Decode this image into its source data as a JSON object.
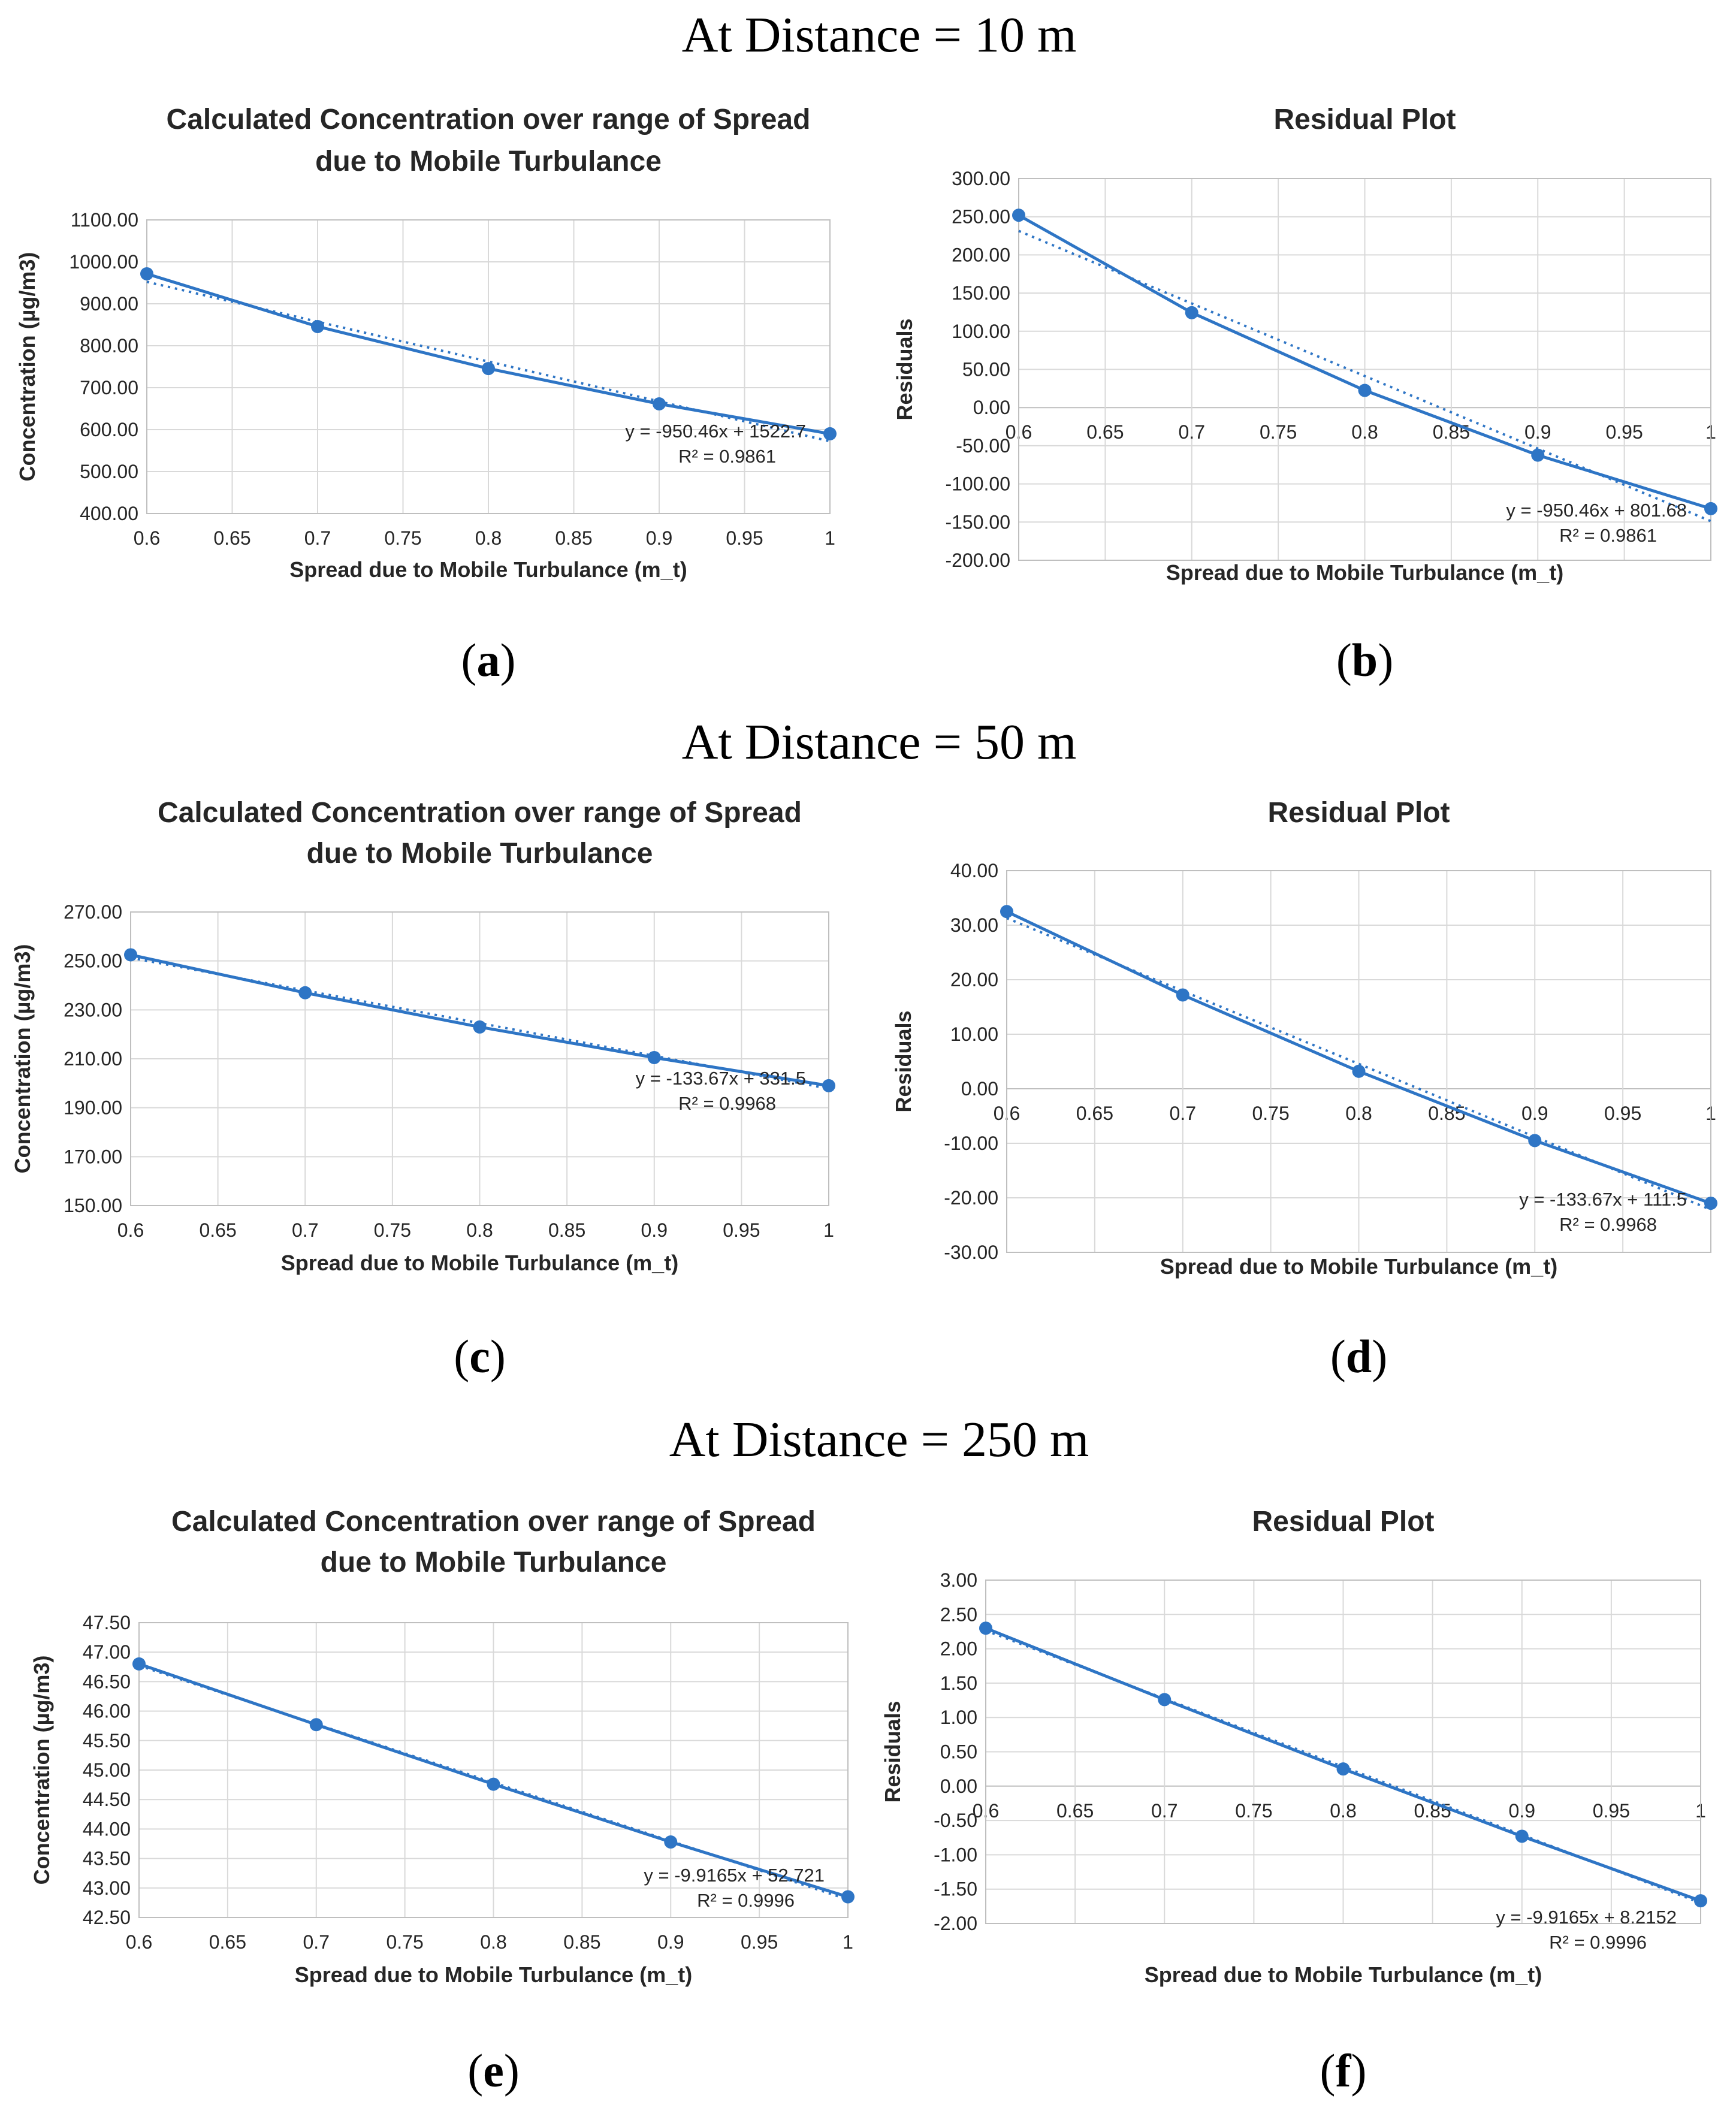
{
  "sections": [
    {
      "heading": "At Distance = 10 m"
    },
    {
      "heading": "At Distance = 50 m"
    },
    {
      "heading": "At Distance = 250 m"
    }
  ],
  "colors": {
    "series": "#2e75c5",
    "grid": "#d9d9d9",
    "text": "#262626"
  },
  "chart_data": [
    {
      "id": "a",
      "panel_label": "(a)",
      "type": "line",
      "title_lines": [
        "Calculated Concentration over range of Spread",
        "due to Mobile Turbulance"
      ],
      "xlabel": "Spread due to Mobile Turbulance (m_t)",
      "ylabel": "Concentration (µg/m3)",
      "xlim": [
        0.6,
        1.0
      ],
      "x_ticks": [
        "0.6",
        "0.65",
        "0.7",
        "0.75",
        "0.8",
        "0.85",
        "0.9",
        "0.95",
        "1"
      ],
      "ylim": [
        400,
        1100
      ],
      "y_ticks": [
        "400.00",
        "500.00",
        "600.00",
        "700.00",
        "800.00",
        "900.00",
        "1000.00",
        "1100.00"
      ],
      "x": [
        0.6,
        0.7,
        0.8,
        0.9,
        1.0
      ],
      "y": [
        971.5,
        845.8,
        745.6,
        661.4,
        590.1
      ],
      "trendline": {
        "slope": -950.46,
        "intercept": 1522.7
      },
      "equation": "y = -950.46x + 1522.7",
      "r2_label": "R² = 0.9861"
    },
    {
      "id": "b",
      "panel_label": "(b)",
      "type": "line",
      "title_lines": [
        "Residual Plot"
      ],
      "xlabel": "Spread due to Mobile Turbulance (m_t)",
      "ylabel": "Residuals",
      "xlim": [
        0.6,
        1.0
      ],
      "x_ticks": [
        "0.6",
        "0.65",
        "0.7",
        "0.75",
        "0.8",
        "0.85",
        "0.9",
        "0.95",
        "1"
      ],
      "ylim": [
        -200,
        300
      ],
      "y_ticks": [
        "-200.00",
        "-150.00",
        "-100.00",
        "-50.00",
        "0.00",
        "50.00",
        "100.00",
        "150.00",
        "200.00",
        "250.00",
        "300.00"
      ],
      "x": [
        0.6,
        0.7,
        0.8,
        0.9,
        1.0
      ],
      "y": [
        252.0,
        124.3,
        22.5,
        -62.3,
        -132.4
      ],
      "trendline": {
        "slope": -950.46,
        "intercept": 801.68
      },
      "equation": "y = -950.46x + 801.68",
      "r2_label": "R² = 0.9861"
    },
    {
      "id": "c",
      "panel_label": "(c)",
      "type": "line",
      "title_lines": [
        "Calculated Concentration over range of Spread",
        "due to Mobile Turbulance"
      ],
      "xlabel": "Spread due to Mobile Turbulance (m_t)",
      "ylabel": "Concentration (µg/m3)",
      "xlim": [
        0.6,
        1.0
      ],
      "x_ticks": [
        "0.6",
        "0.65",
        "0.7",
        "0.75",
        "0.8",
        "0.85",
        "0.9",
        "0.95",
        "1"
      ],
      "ylim": [
        150,
        270
      ],
      "y_ticks": [
        "150.00",
        "170.00",
        "190.00",
        "210.00",
        "230.00",
        "250.00",
        "270.00"
      ],
      "x": [
        0.6,
        0.7,
        0.8,
        0.9,
        1.0
      ],
      "y": [
        252.5,
        237.0,
        223.0,
        210.5,
        199.0
      ],
      "trendline": {
        "slope": -133.67,
        "intercept": 331.5
      },
      "equation": "y = -133.67x + 331.5",
      "r2_label": "R² = 0.9968"
    },
    {
      "id": "d",
      "panel_label": "(d)",
      "type": "line",
      "title_lines": [
        "Residual Plot"
      ],
      "xlabel": "Spread due to Mobile Turbulance (m_t)",
      "ylabel": "Residuals",
      "xlim": [
        0.6,
        1.0
      ],
      "x_ticks": [
        "0.6",
        "0.65",
        "0.7",
        "0.75",
        "0.8",
        "0.85",
        "0.9",
        "0.95",
        "1"
      ],
      "ylim": [
        -30,
        40
      ],
      "y_ticks": [
        "-30.00",
        "-20.00",
        "-10.00",
        "0.00",
        "10.00",
        "20.00",
        "30.00",
        "40.00"
      ],
      "x": [
        0.6,
        0.7,
        0.8,
        0.9,
        1.0
      ],
      "y": [
        32.5,
        17.2,
        3.2,
        -9.5,
        -21.0
      ],
      "trendline": {
        "slope": -133.67,
        "intercept": 111.5
      },
      "equation": "y = -133.67x + 111.5",
      "r2_label": "R² = 0.9968"
    },
    {
      "id": "e",
      "panel_label": "(e)",
      "type": "line",
      "title_lines": [
        "Calculated Concentration over range of Spread",
        "due to Mobile Turbulance"
      ],
      "xlabel": "Spread due to Mobile Turbulance (m_t)",
      "ylabel": "Concentration (µg/m3)",
      "xlim": [
        0.6,
        1.0
      ],
      "x_ticks": [
        "0.6",
        "0.65",
        "0.7",
        "0.75",
        "0.8",
        "0.85",
        "0.9",
        "0.95",
        "1"
      ],
      "ylim": [
        42.5,
        47.5
      ],
      "y_ticks": [
        "42.50",
        "43.00",
        "43.50",
        "44.00",
        "44.50",
        "45.00",
        "45.50",
        "46.00",
        "46.50",
        "47.00",
        "47.50"
      ],
      "x": [
        0.6,
        0.7,
        0.8,
        0.9,
        1.0
      ],
      "y": [
        46.8,
        45.77,
        44.76,
        43.78,
        42.85
      ],
      "trendline": {
        "slope": -9.9165,
        "intercept": 52.721
      },
      "equation": "y = -9.9165x + 52.721",
      "r2_label": "R² = 0.9996"
    },
    {
      "id": "f",
      "panel_label": "(f)",
      "type": "line",
      "title_lines": [
        "Residual Plot"
      ],
      "xlabel": "Spread due to Mobile Turbulance (m_t)",
      "ylabel": "Residuals",
      "xlim": [
        0.6,
        1.0
      ],
      "x_ticks": [
        "0.6",
        "0.65",
        "0.7",
        "0.75",
        "0.8",
        "0.85",
        "0.9",
        "0.95",
        "1"
      ],
      "ylim": [
        -2,
        3
      ],
      "y_ticks": [
        "-2.00",
        "-1.50",
        "-1.00",
        "-0.50",
        "0.00",
        "0.50",
        "1.00",
        "1.50",
        "2.00",
        "2.50",
        "3.00"
      ],
      "x": [
        0.6,
        0.7,
        0.8,
        0.9,
        1.0
      ],
      "y": [
        2.3,
        1.26,
        0.25,
        -0.73,
        -1.67
      ],
      "trendline": {
        "slope": -9.9165,
        "intercept": 8.2152
      },
      "equation": "y = -9.9165x + 8.2152",
      "r2_label": "R² = 0.9996"
    }
  ]
}
